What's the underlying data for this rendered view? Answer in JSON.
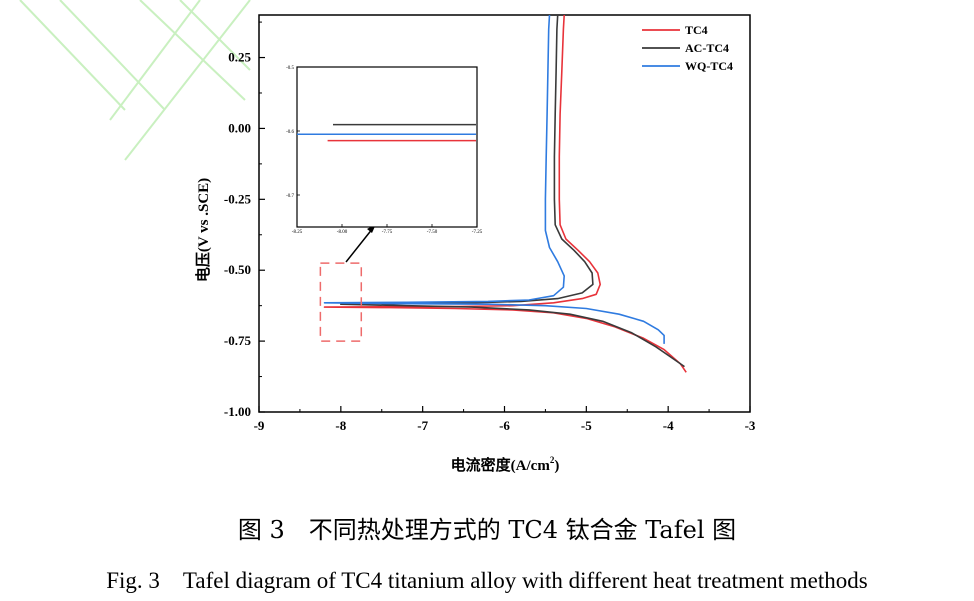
{
  "caption": {
    "chinese": "图 3　不同热处理方式的 TC4 钛合金 Tafel 图",
    "english": "Fig. 3　Tafel diagram of TC4 titanium alloy with different heat treatment methods"
  },
  "chart_data": {
    "type": "line",
    "xlabel_prefix": "电流密度(A/cm",
    "xlabel_sup": "2",
    "xlabel_suffix": ")",
    "ylabel": "电压(V vs .SCE)",
    "xlim": [
      -9,
      -3
    ],
    "ylim": [
      -1.0,
      0.4
    ],
    "xticks": [
      "-9",
      "-8",
      "-7",
      "-6",
      "-5",
      "-4",
      "-3"
    ],
    "yticks": [
      "0.25",
      "0.00",
      "-0.25",
      "-0.50",
      "-0.75",
      "-1.00"
    ],
    "legend_position": "top-right",
    "colors": {
      "TC4": "#e8333a",
      "AC-TC4": "#3a3a3a",
      "WQ-TC4": "#2f7be0",
      "box": "#ee6b6b"
    },
    "series": [
      {
        "name": "TC4",
        "color": "#e8333a",
        "points": [
          [
            -3.78,
            -0.86
          ],
          [
            -3.85,
            -0.83
          ],
          [
            -4.05,
            -0.78
          ],
          [
            -4.3,
            -0.74
          ],
          [
            -4.65,
            -0.7
          ],
          [
            -5.0,
            -0.67
          ],
          [
            -5.4,
            -0.65
          ],
          [
            -5.9,
            -0.64
          ],
          [
            -6.6,
            -0.635
          ],
          [
            -7.4,
            -0.632
          ],
          [
            -8.2,
            -0.63
          ],
          [
            -6.6,
            -0.628
          ],
          [
            -5.9,
            -0.625
          ],
          [
            -5.4,
            -0.615
          ],
          [
            -5.05,
            -0.6
          ],
          [
            -4.88,
            -0.585
          ],
          [
            -4.83,
            -0.55
          ],
          [
            -4.86,
            -0.51
          ],
          [
            -4.96,
            -0.47
          ],
          [
            -5.1,
            -0.43
          ],
          [
            -5.25,
            -0.39
          ],
          [
            -5.32,
            -0.34
          ],
          [
            -5.33,
            -0.25
          ],
          [
            -5.33,
            -0.1
          ],
          [
            -5.32,
            0.05
          ],
          [
            -5.3,
            0.2
          ],
          [
            -5.28,
            0.35
          ],
          [
            -5.27,
            0.4
          ]
        ]
      },
      {
        "name": "AC-TC4",
        "color": "#3a3a3a",
        "points": [
          [
            -3.8,
            -0.84
          ],
          [
            -3.95,
            -0.81
          ],
          [
            -4.15,
            -0.77
          ],
          [
            -4.45,
            -0.72
          ],
          [
            -4.8,
            -0.68
          ],
          [
            -5.2,
            -0.655
          ],
          [
            -5.7,
            -0.64
          ],
          [
            -6.4,
            -0.63
          ],
          [
            -7.2,
            -0.625
          ],
          [
            -8.0,
            -0.62
          ],
          [
            -7.2,
            -0.618
          ],
          [
            -6.4,
            -0.615
          ],
          [
            -5.8,
            -0.61
          ],
          [
            -5.35,
            -0.6
          ],
          [
            -5.05,
            -0.58
          ],
          [
            -4.92,
            -0.55
          ],
          [
            -4.93,
            -0.51
          ],
          [
            -5.02,
            -0.47
          ],
          [
            -5.15,
            -0.43
          ],
          [
            -5.3,
            -0.39
          ],
          [
            -5.38,
            -0.34
          ],
          [
            -5.39,
            -0.25
          ],
          [
            -5.39,
            -0.1
          ],
          [
            -5.38,
            0.05
          ],
          [
            -5.37,
            0.2
          ],
          [
            -5.36,
            0.35
          ],
          [
            -5.35,
            0.4
          ]
        ]
      },
      {
        "name": "WQ-TC4",
        "color": "#2f7be0",
        "points": [
          [
            -4.05,
            -0.76
          ],
          [
            -4.05,
            -0.73
          ],
          [
            -4.12,
            -0.71
          ],
          [
            -4.3,
            -0.68
          ],
          [
            -4.6,
            -0.655
          ],
          [
            -5.0,
            -0.635
          ],
          [
            -5.5,
            -0.625
          ],
          [
            -6.2,
            -0.62
          ],
          [
            -7.2,
            -0.618
          ],
          [
            -8.2,
            -0.615
          ],
          [
            -7.2,
            -0.613
          ],
          [
            -6.2,
            -0.61
          ],
          [
            -5.7,
            -0.605
          ],
          [
            -5.4,
            -0.59
          ],
          [
            -5.28,
            -0.56
          ],
          [
            -5.27,
            -0.52
          ],
          [
            -5.35,
            -0.47
          ],
          [
            -5.45,
            -0.42
          ],
          [
            -5.5,
            -0.36
          ],
          [
            -5.5,
            -0.25
          ],
          [
            -5.49,
            -0.1
          ],
          [
            -5.48,
            0.05
          ],
          [
            -5.47,
            0.2
          ],
          [
            -5.46,
            0.35
          ],
          [
            -5.45,
            0.4
          ]
        ]
      }
    ],
    "inset": {
      "xticks": [
        "-8.25",
        "-8.00",
        "-7.75",
        "-7.50",
        "-7.25"
      ],
      "yticks": [
        "-0.5",
        "-0.6",
        "-0.7"
      ],
      "xlim": [
        -8.25,
        -7.25
      ],
      "ylim": [
        -0.75,
        -0.5
      ],
      "lines": [
        {
          "name": "AC-TC4",
          "color": "#3a3a3a",
          "x": [
            -8.05,
            -7.25
          ],
          "y": -0.59
        },
        {
          "name": "WQ-TC4",
          "color": "#2f7be0",
          "x": [
            -8.25,
            -7.25
          ],
          "y": -0.605
        },
        {
          "name": "TC4",
          "color": "#e8333a",
          "x": [
            -8.08,
            -7.25
          ],
          "y": -0.615
        }
      ]
    },
    "highlight_box": {
      "x": [
        -8.25,
        -7.75
      ],
      "y": [
        -0.75,
        -0.475
      ]
    }
  }
}
